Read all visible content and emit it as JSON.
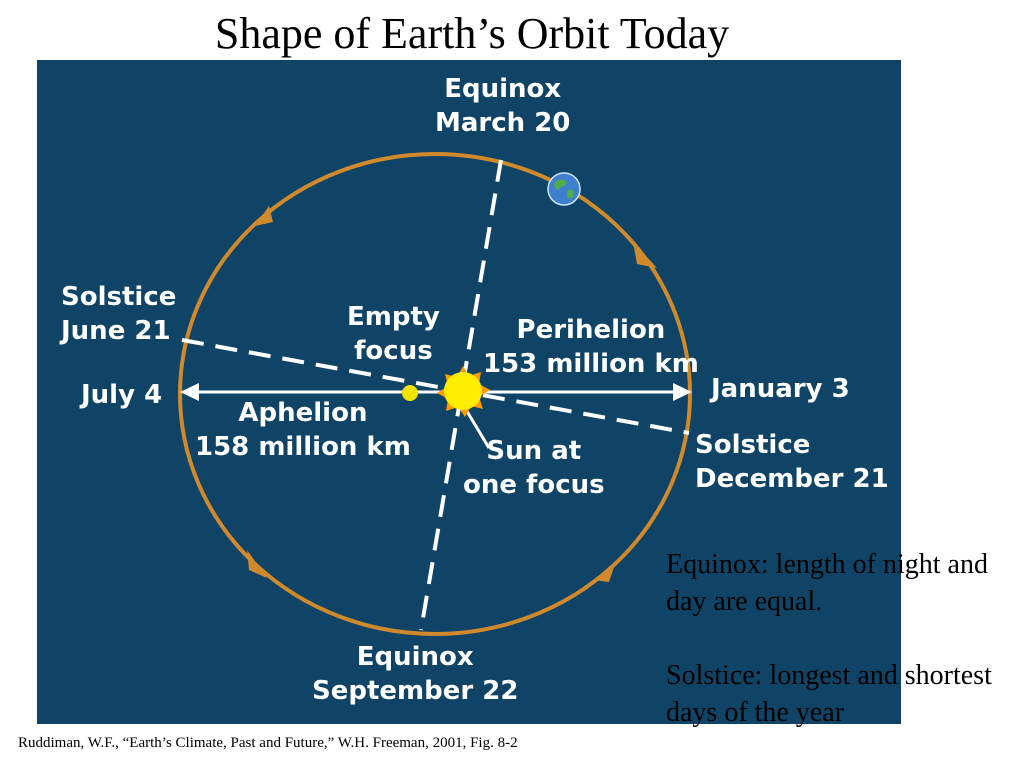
{
  "title": "Shape of Earth’s Orbit Today",
  "diagram": {
    "equinox_march": {
      "line1": "Equinox",
      "line2": "March 20"
    },
    "solstice_june": {
      "line1": "Solstice",
      "line2": "June 21"
    },
    "empty_focus": {
      "line1": "Empty",
      "line2": "focus"
    },
    "perihelion": {
      "line1": "Perihelion",
      "line2": "153 million km"
    },
    "july": "July 4",
    "january": "January 3",
    "aphelion": {
      "line1": "Aphelion",
      "line2": "158 million km"
    },
    "sun_focus": {
      "line1": "Sun at",
      "line2": "one focus"
    },
    "solstice_december": {
      "line1": "Solstice",
      "line2": "December 21"
    },
    "equinox_september": {
      "line1": "Equinox",
      "line2": "September 22"
    },
    "colors": {
      "background": "#0f4466",
      "orbit": "#d08a2c",
      "sun": "#ffee00",
      "empty_focus": "#f2e400",
      "lines": "#ffffff"
    }
  },
  "notes": {
    "equinox_def": "Equinox: length of night and day are equal.",
    "solstice_def": "Solstice: longest and shortest days of the year"
  },
  "citation": "Ruddiman, W.F., “Earth’s Climate, Past and Future,” W.H. Freeman, 2001, Fig. 8-2"
}
